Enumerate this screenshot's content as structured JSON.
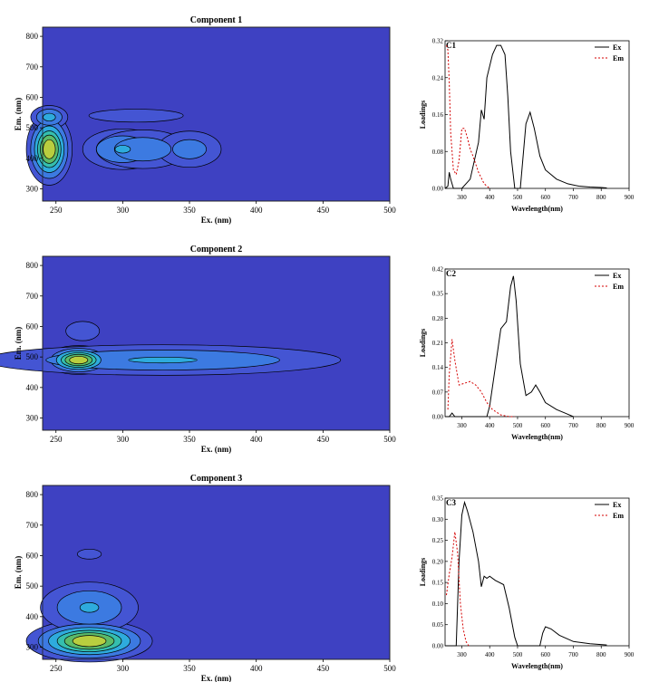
{
  "chart_data": [
    {
      "type": "heatmap",
      "title": "Component 1",
      "xlabel": "Ex. (nm)",
      "ylabel": "Em. (nm)",
      "xlim": [
        240,
        500
      ],
      "ylim": [
        260,
        830
      ],
      "xticks": [
        250,
        300,
        350,
        400,
        450,
        500
      ],
      "yticks": [
        300,
        400,
        500,
        600,
        700,
        800
      ],
      "peaks": [
        {
          "ex": 245,
          "em": 430,
          "level": 1.0
        },
        {
          "ex": 245,
          "em": 535,
          "level": 0.45
        },
        {
          "ex": 300,
          "em": 430,
          "level": 0.4
        },
        {
          "ex": 315,
          "em": 430,
          "level": 0.35
        },
        {
          "ex": 350,
          "em": 430,
          "level": 0.3
        },
        {
          "ex": 310,
          "em": 540,
          "level": 0.2
        }
      ]
    },
    {
      "type": "line",
      "label": "C1",
      "xlabel": "Wavelength(nm)",
      "ylabel": "Loadings",
      "xlim": [
        240,
        900
      ],
      "ylim": [
        0,
        0.32
      ],
      "xticks": [
        300,
        400,
        500,
        600,
        700,
        800,
        900
      ],
      "yticks": [
        0.0,
        0.08,
        0.16,
        0.24,
        0.32
      ],
      "ytick_labels": [
        "0.00",
        "0.08",
        "0.16",
        "0.24",
        "0.32"
      ],
      "legend": "top-right",
      "series": [
        {
          "name": "Ex",
          "color": "#000000",
          "style": "solid",
          "x": [
            240,
            250,
            255,
            260,
            270,
            300,
            330,
            360,
            370,
            380,
            390,
            410,
            425,
            440,
            455,
            465,
            475,
            490,
            510,
            530,
            545,
            560,
            580,
            600,
            640,
            680,
            720,
            760,
            800,
            820
          ],
          "y": [
            0.0,
            0.005,
            0.035,
            0.02,
            0.0,
            0.0,
            0.02,
            0.1,
            0.17,
            0.15,
            0.24,
            0.29,
            0.31,
            0.31,
            0.29,
            0.2,
            0.08,
            0.0,
            0.0,
            0.14,
            0.165,
            0.13,
            0.07,
            0.04,
            0.02,
            0.01,
            0.005,
            0.003,
            0.002,
            0.001
          ]
        },
        {
          "name": "Em",
          "color": "#d40000",
          "style": "dashed",
          "x": [
            245,
            250,
            255,
            260,
            270,
            280,
            290,
            300,
            310,
            320,
            330,
            340,
            360,
            380,
            400
          ],
          "y": [
            0.31,
            0.3,
            0.23,
            0.12,
            0.04,
            0.03,
            0.06,
            0.13,
            0.13,
            0.11,
            0.085,
            0.07,
            0.035,
            0.01,
            0.0
          ]
        }
      ]
    },
    {
      "type": "heatmap",
      "title": "Component 2",
      "xlabel": "Ex. (nm)",
      "ylabel": "Em. (nm)",
      "xlim": [
        240,
        500
      ],
      "ylim": [
        260,
        830
      ],
      "xticks": [
        250,
        300,
        350,
        400,
        450,
        500
      ],
      "yticks": [
        300,
        400,
        500,
        600,
        700,
        800
      ],
      "peaks": [
        {
          "ex": 267,
          "em": 490,
          "level": 1.0
        },
        {
          "ex": 330,
          "em": 490,
          "level": 0.4
        },
        {
          "ex": 270,
          "em": 585,
          "level": 0.15
        }
      ]
    },
    {
      "type": "line",
      "label": "C2",
      "xlabel": "Wavelength(nm)",
      "ylabel": "Loadings",
      "xlim": [
        240,
        900
      ],
      "ylim": [
        0,
        0.42
      ],
      "xticks": [
        300,
        400,
        500,
        600,
        700,
        800,
        900
      ],
      "yticks": [
        0.0,
        0.07,
        0.14,
        0.21,
        0.28,
        0.35,
        0.42
      ],
      "ytick_labels": [
        "0.00",
        "0.07",
        "0.14",
        "0.21",
        "0.28",
        "0.35",
        "0.42"
      ],
      "legend": "top-right",
      "series": [
        {
          "name": "Ex",
          "color": "#000000",
          "style": "solid",
          "x": [
            240,
            255,
            265,
            275,
            300,
            390,
            400,
            420,
            440,
            460,
            475,
            485,
            495,
            510,
            530,
            550,
            565,
            580,
            600,
            640,
            670,
            700
          ],
          "y": [
            0.0,
            0.0,
            0.01,
            0.0,
            0.0,
            0.0,
            0.03,
            0.14,
            0.25,
            0.27,
            0.37,
            0.4,
            0.33,
            0.15,
            0.06,
            0.07,
            0.09,
            0.07,
            0.04,
            0.02,
            0.01,
            0.0
          ]
        },
        {
          "name": "Em",
          "color": "#d40000",
          "style": "dashed",
          "x": [
            250,
            255,
            265,
            275,
            290,
            310,
            330,
            350,
            370,
            390,
            410,
            440,
            470,
            490
          ],
          "y": [
            0.02,
            0.12,
            0.22,
            0.16,
            0.09,
            0.095,
            0.1,
            0.09,
            0.07,
            0.04,
            0.02,
            0.005,
            0.0,
            0.0
          ]
        }
      ]
    },
    {
      "type": "heatmap",
      "title": "Component 3",
      "xlabel": "Ex. (nm)",
      "ylabel": "Em. (nm)",
      "xlim": [
        240,
        500
      ],
      "ylim": [
        260,
        830
      ],
      "xticks": [
        250,
        300,
        350,
        400,
        450,
        500
      ],
      "yticks": [
        300,
        400,
        500,
        600,
        700,
        800
      ],
      "peaks": [
        {
          "ex": 275,
          "em": 320,
          "level": 1.0
        },
        {
          "ex": 275,
          "em": 430,
          "level": 0.4
        },
        {
          "ex": 275,
          "em": 605,
          "level": 0.15
        }
      ]
    },
    {
      "type": "line",
      "label": "C3",
      "xlabel": "Wavelength(nm)",
      "ylabel": "Loadings",
      "xlim": [
        240,
        900
      ],
      "ylim": [
        0,
        0.35
      ],
      "xticks": [
        300,
        400,
        500,
        600,
        700,
        800,
        900
      ],
      "yticks": [
        0.0,
        0.05,
        0.1,
        0.15,
        0.2,
        0.25,
        0.3,
        0.35
      ],
      "ytick_labels": [
        "0.00",
        "0.05",
        "0.10",
        "0.15",
        "0.20",
        "0.25",
        "0.30",
        "0.35"
      ],
      "legend": "top-right",
      "series": [
        {
          "name": "Ex",
          "color": "#000000",
          "style": "solid",
          "x": [
            240,
            280,
            290,
            300,
            310,
            320,
            340,
            360,
            370,
            380,
            390,
            400,
            420,
            450,
            470,
            490,
            500,
            580,
            590,
            600,
            620,
            650,
            700,
            760,
            820
          ],
          "y": [
            0.0,
            0.0,
            0.2,
            0.31,
            0.34,
            0.32,
            0.27,
            0.2,
            0.14,
            0.165,
            0.16,
            0.165,
            0.155,
            0.145,
            0.09,
            0.02,
            0.0,
            0.0,
            0.03,
            0.045,
            0.04,
            0.025,
            0.01,
            0.005,
            0.002
          ]
        },
        {
          "name": "Em",
          "color": "#d40000",
          "style": "dashed",
          "x": [
            245,
            255,
            265,
            275,
            285,
            295,
            305,
            315,
            325
          ],
          "y": [
            0.12,
            0.17,
            0.21,
            0.27,
            0.22,
            0.1,
            0.04,
            0.01,
            0.0
          ]
        }
      ]
    }
  ]
}
